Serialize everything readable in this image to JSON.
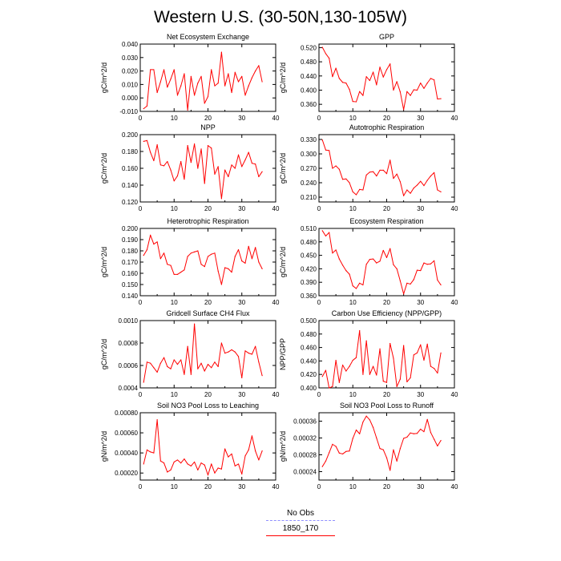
{
  "title": "Western U.S. (30-50N,130-105W)",
  "legend": {
    "items": [
      {
        "label": "No Obs",
        "color": "#8f8fff",
        "style": "dashed"
      },
      {
        "label": "1850_170",
        "color": "#ff0000",
        "style": "solid"
      }
    ]
  },
  "chart_data": [
    {
      "type": "line",
      "title": "Net Ecosystem Exchange",
      "ylabel": "gC/m^2/d",
      "xlim": [
        0,
        40
      ],
      "ylim": [
        -0.01,
        0.04
      ],
      "xticks": [
        "0",
        "10",
        "20",
        "30",
        "40"
      ],
      "yticks": [
        "-0.010",
        "0.000",
        "0.010",
        "0.020",
        "0.030",
        "0.040"
      ],
      "ytick_values": [
        -0.01,
        0,
        0.01,
        0.02,
        0.03,
        0.04
      ],
      "series": [
        {
          "color": "#ff0000",
          "x": [
            1,
            2,
            3,
            4,
            5,
            6,
            7,
            8,
            9,
            10,
            11,
            12,
            13,
            14,
            15,
            16,
            17,
            18,
            19,
            20,
            21,
            22,
            23,
            24,
            25,
            26,
            27,
            28,
            29,
            30,
            31,
            32,
            33,
            34,
            35,
            36
          ],
          "y": [
            -0.008,
            -0.006,
            0.021,
            0.021,
            0.004,
            0.012,
            0.021,
            0.008,
            0.014,
            0.021,
            0.002,
            0.009,
            0.018,
            -0.009,
            0.016,
            0.002,
            0.011,
            0.016,
            -0.004,
            0.001,
            0.021,
            0.009,
            0.011,
            0.034,
            0.009,
            0.018,
            0.004,
            0.019,
            0.012,
            0.016,
            0.002,
            0.009,
            0.015,
            0.02,
            0.024,
            0.012
          ]
        }
      ]
    },
    {
      "type": "line",
      "title": "GPP",
      "ylabel": "gC/m^2/d",
      "xlim": [
        0,
        40
      ],
      "ylim": [
        0.34,
        0.53
      ],
      "xticks": [
        "0",
        "10",
        "20",
        "30",
        "40"
      ],
      "yticks": [
        "0.360",
        "0.400",
        "0.440",
        "0.480",
        "0.520"
      ],
      "ytick_values": [
        0.36,
        0.4,
        0.44,
        0.48,
        0.52
      ],
      "series": [
        {
          "color": "#ff0000",
          "x": [
            1,
            2,
            3,
            4,
            5,
            6,
            7,
            8,
            9,
            10,
            11,
            12,
            13,
            14,
            15,
            16,
            17,
            18,
            19,
            20,
            21,
            22,
            23,
            24,
            25,
            26,
            27,
            28,
            29,
            30,
            31,
            32,
            33,
            34,
            35,
            36
          ],
          "y": [
            0.521,
            0.503,
            0.49,
            0.438,
            0.462,
            0.433,
            0.422,
            0.42,
            0.402,
            0.368,
            0.367,
            0.396,
            0.385,
            0.438,
            0.427,
            0.451,
            0.415,
            0.465,
            0.437,
            0.458,
            0.474,
            0.4,
            0.424,
            0.395,
            0.345,
            0.396,
            0.385,
            0.401,
            0.4,
            0.42,
            0.405,
            0.42,
            0.433,
            0.429,
            0.375,
            0.376
          ]
        }
      ]
    },
    {
      "type": "line",
      "title": "NPP",
      "ylabel": "gC/m^2/d",
      "xlim": [
        0,
        40
      ],
      "ylim": [
        0.12,
        0.2
      ],
      "xticks": [
        "0",
        "10",
        "20",
        "30",
        "40"
      ],
      "yticks": [
        "0.120",
        "0.140",
        "0.160",
        "0.180",
        "0.200"
      ],
      "ytick_values": [
        0.12,
        0.14,
        0.16,
        0.18,
        0.2
      ],
      "series": [
        {
          "color": "#ff0000",
          "x": [
            1,
            2,
            3,
            4,
            5,
            6,
            7,
            8,
            9,
            10,
            11,
            12,
            13,
            14,
            15,
            16,
            17,
            18,
            19,
            20,
            21,
            22,
            23,
            24,
            25,
            26,
            27,
            28,
            29,
            30,
            31,
            32,
            33,
            34,
            35,
            36
          ],
          "y": [
            0.192,
            0.193,
            0.179,
            0.169,
            0.188,
            0.164,
            0.163,
            0.168,
            0.158,
            0.145,
            0.151,
            0.168,
            0.147,
            0.187,
            0.167,
            0.189,
            0.16,
            0.183,
            0.142,
            0.187,
            0.184,
            0.153,
            0.162,
            0.124,
            0.158,
            0.15,
            0.164,
            0.16,
            0.176,
            0.162,
            0.17,
            0.179,
            0.166,
            0.165,
            0.15,
            0.156
          ]
        }
      ]
    },
    {
      "type": "line",
      "title": "Autotrophic Respiration",
      "ylabel": "gC/m^2/d",
      "xlim": [
        0,
        40
      ],
      "ylim": [
        0.2,
        0.34
      ],
      "xticks": [
        "0",
        "10",
        "20",
        "30",
        "40"
      ],
      "yticks": [
        "0.210",
        "0.240",
        "0.270",
        "0.300",
        "0.330"
      ],
      "ytick_values": [
        0.21,
        0.24,
        0.27,
        0.3,
        0.33
      ],
      "series": [
        {
          "color": "#ff0000",
          "x": [
            1,
            2,
            3,
            4,
            5,
            6,
            7,
            8,
            9,
            10,
            11,
            12,
            13,
            14,
            15,
            16,
            17,
            18,
            19,
            20,
            21,
            22,
            23,
            24,
            25,
            26,
            27,
            28,
            29,
            30,
            31,
            32,
            33,
            34,
            35,
            36
          ],
          "y": [
            0.329,
            0.308,
            0.307,
            0.27,
            0.275,
            0.268,
            0.247,
            0.248,
            0.24,
            0.221,
            0.215,
            0.226,
            0.225,
            0.256,
            0.262,
            0.263,
            0.254,
            0.266,
            0.266,
            0.259,
            0.287,
            0.249,
            0.258,
            0.242,
            0.213,
            0.225,
            0.218,
            0.229,
            0.235,
            0.243,
            0.234,
            0.245,
            0.254,
            0.261,
            0.225,
            0.221
          ]
        }
      ]
    },
    {
      "type": "line",
      "title": "Heterotrophic Respiration",
      "ylabel": "gC/m^2/d",
      "xlim": [
        0,
        40
      ],
      "ylim": [
        0.14,
        0.2
      ],
      "xticks": [
        "0",
        "10",
        "20",
        "30",
        "40"
      ],
      "yticks": [
        "0.140",
        "0.150",
        "0.160",
        "0.170",
        "0.180",
        "0.190",
        "0.200"
      ],
      "ytick_values": [
        0.14,
        0.15,
        0.16,
        0.17,
        0.18,
        0.19,
        0.2
      ],
      "series": [
        {
          "color": "#ff0000",
          "x": [
            1,
            2,
            3,
            4,
            5,
            6,
            7,
            8,
            9,
            10,
            11,
            12,
            13,
            14,
            15,
            16,
            17,
            18,
            19,
            20,
            21,
            22,
            23,
            24,
            25,
            26,
            27,
            28,
            29,
            30,
            31,
            32,
            33,
            34,
            35,
            36
          ],
          "y": [
            0.176,
            0.181,
            0.194,
            0.186,
            0.188,
            0.173,
            0.178,
            0.168,
            0.167,
            0.159,
            0.159,
            0.161,
            0.163,
            0.175,
            0.178,
            0.179,
            0.18,
            0.168,
            0.166,
            0.175,
            0.177,
            0.178,
            0.162,
            0.15,
            0.165,
            0.164,
            0.161,
            0.175,
            0.181,
            0.171,
            0.169,
            0.184,
            0.173,
            0.183,
            0.17,
            0.164
          ]
        }
      ]
    },
    {
      "type": "line",
      "title": "Ecosystem Respiration",
      "ylabel": "gC/m^2/d",
      "xlim": [
        0,
        40
      ],
      "ylim": [
        0.36,
        0.51
      ],
      "xticks": [
        "0",
        "10",
        "20",
        "30",
        "40"
      ],
      "yticks": [
        "0.360",
        "0.390",
        "0.420",
        "0.450",
        "0.480",
        "0.510"
      ],
      "ytick_values": [
        0.36,
        0.39,
        0.42,
        0.45,
        0.48,
        0.51
      ],
      "series": [
        {
          "color": "#ff0000",
          "x": [
            1,
            2,
            3,
            4,
            5,
            6,
            7,
            8,
            9,
            10,
            11,
            12,
            13,
            14,
            15,
            16,
            17,
            18,
            19,
            20,
            21,
            22,
            23,
            24,
            25,
            26,
            27,
            28,
            29,
            30,
            31,
            32,
            33,
            34,
            35,
            36
          ],
          "y": [
            0.505,
            0.493,
            0.501,
            0.455,
            0.462,
            0.442,
            0.428,
            0.416,
            0.408,
            0.382,
            0.376,
            0.388,
            0.384,
            0.43,
            0.441,
            0.442,
            0.433,
            0.437,
            0.461,
            0.445,
            0.465,
            0.429,
            0.42,
            0.393,
            0.364,
            0.388,
            0.386,
            0.396,
            0.417,
            0.416,
            0.433,
            0.43,
            0.431,
            0.438,
            0.395,
            0.384
          ]
        }
      ]
    },
    {
      "type": "line",
      "title": "Gridcell Surface CH4 Flux",
      "ylabel": "gC/m^2/d",
      "xlim": [
        0,
        40
      ],
      "ylim": [
        0.0004,
        0.001
      ],
      "xticks": [
        "0",
        "10",
        "20",
        "30",
        "40"
      ],
      "yticks": [
        "0.0004",
        "0.0006",
        "0.0008",
        "0.0010"
      ],
      "ytick_values": [
        0.0004,
        0.0006,
        0.0008,
        0.001
      ],
      "series": [
        {
          "color": "#ff0000",
          "x": [
            1,
            2,
            3,
            4,
            5,
            6,
            7,
            8,
            9,
            10,
            11,
            12,
            13,
            14,
            15,
            16,
            17,
            18,
            19,
            20,
            21,
            22,
            23,
            24,
            25,
            26,
            27,
            28,
            29,
            30,
            31,
            32,
            33,
            34,
            35,
            36
          ],
          "y": [
            0.00045,
            0.00063,
            0.00062,
            0.00058,
            0.00054,
            0.00062,
            0.00067,
            0.00059,
            0.00057,
            0.00065,
            0.00061,
            0.00065,
            0.00052,
            0.00077,
            0.00052,
            0.00097,
            0.00057,
            0.00062,
            0.00055,
            0.00061,
            0.00058,
            0.00063,
            0.00059,
            0.0008,
            0.00071,
            0.00072,
            0.00074,
            0.00072,
            0.00068,
            0.00049,
            0.00073,
            0.00071,
            0.0007,
            0.00077,
            0.00063,
            0.00051
          ]
        }
      ]
    },
    {
      "type": "line",
      "title": "Carbon Use Efficiency (NPP/GPP)",
      "ylabel": "NPP/GPP",
      "xlim": [
        0,
        40
      ],
      "ylim": [
        0.4,
        0.5
      ],
      "xticks": [
        "0",
        "10",
        "20",
        "30",
        "40"
      ],
      "yticks": [
        "0.400",
        "0.420",
        "0.440",
        "0.460",
        "0.480",
        "0.500"
      ],
      "ytick_values": [
        0.4,
        0.42,
        0.44,
        0.46,
        0.48,
        0.5
      ],
      "series": [
        {
          "color": "#ff0000",
          "x": [
            1,
            2,
            3,
            4,
            5,
            6,
            7,
            8,
            9,
            10,
            11,
            12,
            13,
            14,
            15,
            16,
            17,
            18,
            19,
            20,
            21,
            22,
            23,
            24,
            25,
            26,
            27,
            28,
            29,
            30,
            31,
            32,
            33,
            34,
            35,
            36
          ],
          "y": [
            0.417,
            0.426,
            0.4,
            0.402,
            0.441,
            0.408,
            0.434,
            0.425,
            0.432,
            0.441,
            0.445,
            0.485,
            0.42,
            0.47,
            0.42,
            0.432,
            0.419,
            0.458,
            0.41,
            0.408,
            0.466,
            0.444,
            0.402,
            0.413,
            0.463,
            0.409,
            0.415,
            0.449,
            0.452,
            0.464,
            0.441,
            0.465,
            0.432,
            0.429,
            0.422,
            0.452
          ]
        }
      ]
    },
    {
      "type": "line",
      "title": "Soil NO3 Pool Loss to Leaching",
      "ylabel": "gN/m^2/d",
      "xlim": [
        0,
        40
      ],
      "ylim": [
        0.00013,
        0.0008
      ],
      "xticks": [
        "0",
        "10",
        "20",
        "30",
        "40"
      ],
      "yticks": [
        "0.00020",
        "0.00040",
        "0.00060",
        "0.00080"
      ],
      "ytick_values": [
        0.0002,
        0.0004,
        0.0006,
        0.0008
      ],
      "series": [
        {
          "color": "#ff0000",
          "x": [
            1,
            2,
            3,
            4,
            5,
            6,
            7,
            8,
            9,
            10,
            11,
            12,
            13,
            14,
            15,
            16,
            17,
            18,
            19,
            20,
            21,
            22,
            23,
            24,
            25,
            26,
            27,
            28,
            29,
            30,
            31,
            32,
            33,
            34,
            35,
            36
          ],
          "y": [
            0.00029,
            0.00043,
            0.00041,
            0.0004,
            0.00073,
            0.00032,
            0.0003,
            0.00021,
            0.00023,
            0.00031,
            0.00033,
            0.0003,
            0.00034,
            0.00029,
            0.00027,
            0.00031,
            0.00023,
            0.0003,
            0.00028,
            0.00018,
            0.00029,
            0.0002,
            0.00025,
            0.00024,
            0.00044,
            0.00036,
            0.00039,
            0.00027,
            0.00029,
            0.00019,
            0.00037,
            0.00043,
            0.00057,
            0.00042,
            0.00033,
            0.00042
          ]
        }
      ]
    },
    {
      "type": "line",
      "title": "Soil NO3 Pool Loss to Runoff",
      "ylabel": "gN/m^2/d",
      "xlim": [
        0,
        40
      ],
      "ylim": [
        0.00022,
        0.00038
      ],
      "xticks": [
        "0",
        "10",
        "20",
        "30",
        "40"
      ],
      "yticks": [
        "0.00024",
        "0.00028",
        "0.00032",
        "0.00036"
      ],
      "ytick_values": [
        0.00024,
        0.00028,
        0.00032,
        0.00036
      ],
      "series": [
        {
          "color": "#ff0000",
          "x": [
            1,
            2,
            3,
            4,
            5,
            6,
            7,
            8,
            9,
            10,
            11,
            12,
            13,
            14,
            15,
            16,
            17,
            18,
            19,
            20,
            21,
            22,
            23,
            24,
            25,
            26,
            27,
            28,
            29,
            30,
            31,
            32,
            33,
            34,
            35,
            36
          ],
          "y": [
            0.000252,
            0.000265,
            0.000285,
            0.000305,
            0.0003,
            0.000284,
            0.000282,
            0.000288,
            0.000289,
            0.000319,
            0.000339,
            0.00033,
            0.000358,
            0.000372,
            0.000363,
            0.000345,
            0.00032,
            0.000295,
            0.000292,
            0.000273,
            0.000243,
            0.000292,
            0.000265,
            0.000295,
            0.000319,
            0.000322,
            0.000332,
            0.00033,
            0.000331,
            0.000341,
            0.000335,
            0.000364,
            0.000333,
            0.000317,
            0.000301,
            0.000314
          ]
        }
      ]
    }
  ]
}
